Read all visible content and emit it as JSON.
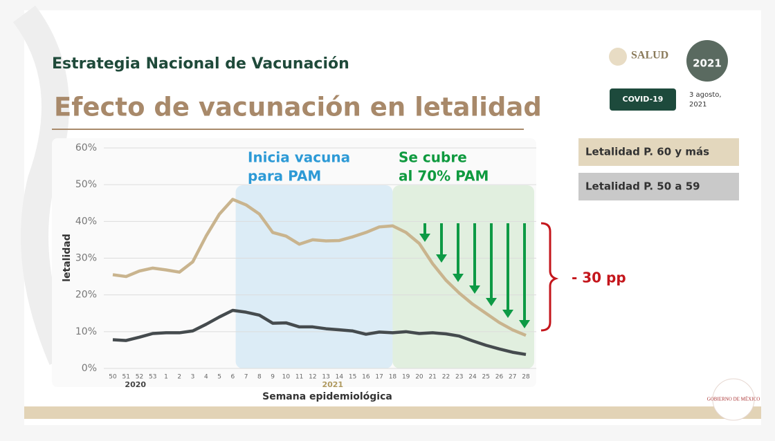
{
  "header": {
    "subtitle": "Estrategia Nacional de Vacunación",
    "salud": "SALUD",
    "badge": "COVID-19",
    "date_lines": [
      "3 agosto,",
      "2021"
    ],
    "emblem_year": "2021",
    "footer_logo": "GOBIERNO DE MÉXICO"
  },
  "chart_data": {
    "type": "line",
    "title": "Efecto de vacunación en letalidad",
    "y_label": "letalidad",
    "x_label": "Semana epidemiológica",
    "categories": [
      "50",
      "51",
      "52",
      "53",
      "1",
      "2",
      "3",
      "4",
      "5",
      "6",
      "7",
      "8",
      "9",
      "10",
      "11",
      "12",
      "13",
      "14",
      "15",
      "16",
      "17",
      "18",
      "19",
      "20",
      "21",
      "22",
      "23",
      "24",
      "25",
      "26",
      "27",
      "28"
    ],
    "year_labels": [
      "2020",
      "2021"
    ],
    "series": [
      {
        "name": "Letalidad P. 60 y más",
        "color": "#c9b48e",
        "values": [
          25.5,
          25,
          26.5,
          27.3,
          26.8,
          26.2,
          29,
          36,
          42,
          46,
          44.5,
          42,
          37,
          36,
          33.8,
          35,
          34.7,
          34.8,
          35.8,
          37,
          38.5,
          38.8,
          37,
          34,
          28.5,
          24,
          20.5,
          17.5,
          15,
          12.5,
          10.5,
          9
        ]
      },
      {
        "name": "Letalidad P. 50 a 59",
        "color": "#454b4e",
        "values": [
          7.8,
          7.6,
          8.5,
          9.5,
          9.7,
          9.7,
          10.2,
          12,
          14,
          15.8,
          15.3,
          14.5,
          12.3,
          12.4,
          11.3,
          11.3,
          10.8,
          10.5,
          10.2,
          9.3,
          9.9,
          9.7,
          10,
          9.5,
          9.7,
          9.4,
          8.8,
          7.5,
          6.3,
          5.3,
          4.4,
          3.8
        ]
      }
    ],
    "ylim": [
      0,
      60
    ],
    "yticks": [
      {
        "value": 0,
        "label": "0%"
      },
      {
        "value": 10,
        "label": "10%"
      },
      {
        "value": 20,
        "label": "20%"
      },
      {
        "value": 30,
        "label": "30%"
      },
      {
        "value": 40,
        "label": "40%"
      },
      {
        "value": 50,
        "label": "50%"
      },
      {
        "value": 60,
        "label": "60%"
      }
    ],
    "grid": true,
    "annotations": [
      [
        "Inicia vacuna",
        "para PAM"
      ],
      [
        "Se cubre",
        "al 70% PAM"
      ]
    ],
    "reduction_label": "- 30 pp"
  }
}
